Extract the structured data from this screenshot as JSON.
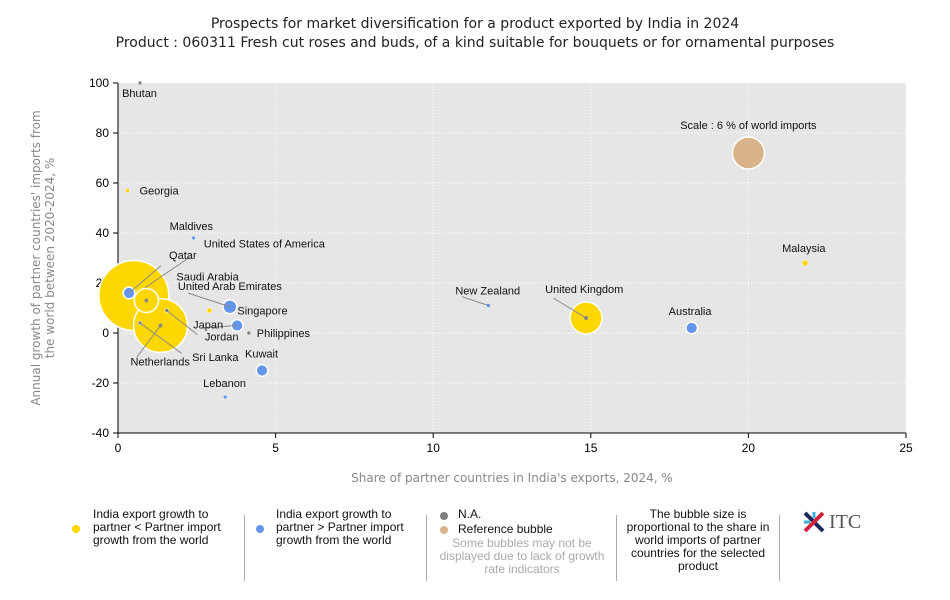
{
  "chart_data": {
    "type": "scatter",
    "title": "Prospects for market diversification for a product exported by India in 2024",
    "subtitle": "Product : 060311 Fresh cut roses and buds, of a kind suitable for bouquets or for ornamental purposes",
    "xlabel": "Share of partner countries in India's exports, 2024, %",
    "ylabel": "Annual growth of partner countries' imports from the world between 2020-2024, %",
    "xlim": [
      0,
      25
    ],
    "ylim": [
      -40,
      100
    ],
    "xticks": [
      0,
      5,
      10,
      15,
      20,
      25
    ],
    "yticks": [
      -40,
      -20,
      0,
      20,
      40,
      60,
      80,
      100
    ],
    "grid": true,
    "colors": {
      "slower": "#FFD700",
      "faster": "#6495ED",
      "na": "#808080",
      "reference": "#D9B48A",
      "plot_bg": "#E6E6E6"
    },
    "points": [
      {
        "label": "Bhutan",
        "x": 0.7,
        "y": 100,
        "world_import_share": 0.05,
        "group": "na"
      },
      {
        "label": "Georgia",
        "x": 0.3,
        "y": 57,
        "world_import_share": 0.1,
        "group": "slower"
      },
      {
        "label": "Maldives",
        "x": 2.4,
        "y": 38,
        "world_import_share": 0.05,
        "group": "faster"
      },
      {
        "label": "United States of America",
        "x": 0.5,
        "y": 15,
        "world_import_share": 28.7,
        "group": "slower"
      },
      {
        "label": "Qatar",
        "x": 0.35,
        "y": 16,
        "world_import_share": 0.8,
        "group": "faster"
      },
      {
        "label": "Saudi Arabia",
        "x": 0.9,
        "y": 13,
        "world_import_share": 3.4,
        "group": "slower"
      },
      {
        "label": "United Arab Emirates",
        "x": 3.55,
        "y": 10.5,
        "world_import_share": 1.1,
        "group": "faster"
      },
      {
        "label": "Singapore",
        "x": 2.9,
        "y": 9,
        "world_import_share": 0.15,
        "group": "slower"
      },
      {
        "label": "Netherlands",
        "x": 1.35,
        "y": 3,
        "world_import_share": 17,
        "group": "slower"
      },
      {
        "label": "Jordan",
        "x": 1.55,
        "y": 9,
        "world_import_share": 0.05,
        "group": "na"
      },
      {
        "label": "Sri Lanka",
        "x": 0.7,
        "y": 4,
        "world_import_share": 0.05,
        "group": "na"
      },
      {
        "label": "Japan",
        "x": 3.78,
        "y": 3,
        "world_import_share": 0.8,
        "group": "faster"
      },
      {
        "label": "Philippines",
        "x": 4.15,
        "y": 0,
        "world_import_share": 0.05,
        "group": "na"
      },
      {
        "label": "Kuwait",
        "x": 4.57,
        "y": -15,
        "world_import_share": 0.8,
        "group": "faster"
      },
      {
        "label": "Lebanon",
        "x": 3.4,
        "y": -25.6,
        "world_import_share": 0.05,
        "group": "faster"
      },
      {
        "label": "New Zealand",
        "x": 11.75,
        "y": 11,
        "world_import_share": 0.1,
        "group": "faster"
      },
      {
        "label": "United Kingdom",
        "x": 14.85,
        "y": 6,
        "world_import_share": 6,
        "group": "slower"
      },
      {
        "label": "Australia",
        "x": 18.2,
        "y": 2,
        "world_import_share": 0.8,
        "group": "faster"
      },
      {
        "label": "Malaysia",
        "x": 21.8,
        "y": 28,
        "world_import_share": 0.2,
        "group": "slower"
      }
    ],
    "reference_bubble": {
      "label": "Scale : 6 % of world imports",
      "x": 20,
      "y": 72,
      "world_import_share": 6
    }
  },
  "legend": {
    "slower": "India export growth to partner < Partner import growth from the world",
    "faster": "India export growth to partner > Partner import growth from the world",
    "na": "N.A.",
    "reference": "Reference bubble",
    "note": "Some bubbles may not be displayed due to lack of growth rate indicators",
    "size_note": "The bubble size is proportional to the share in world imports of partner countries for the selected product",
    "logo": "ITC"
  }
}
